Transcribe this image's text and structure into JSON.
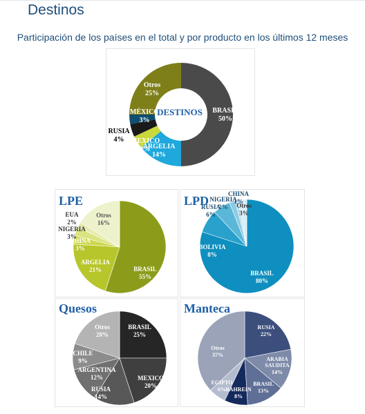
{
  "page": {
    "title": "Destinos",
    "subtitle": "Participación de los países en el total y por producto en los últimos 12 meses"
  },
  "chart_data": [
    {
      "type": "pie",
      "variant": "donut",
      "title": "DESTINOS",
      "slices": [
        {
          "label": "BRASIL",
          "value": 50,
          "display": "50%",
          "color": "#4a4a4a",
          "text_color": "#ffffff"
        },
        {
          "label": "ARGELIA",
          "value": 14,
          "display": "14%",
          "color": "#1ea8dc",
          "text_color": "#ffffff"
        },
        {
          "label": "MEXICO",
          "value": 4,
          "display": "4%",
          "color": "#c9d83b",
          "text_color": "#ffffff"
        },
        {
          "label": "RUSIA",
          "value": 4,
          "display": "4%",
          "color": "#1a1a1a",
          "text_color": "#000000"
        },
        {
          "label": "MÉXICO",
          "value": 3,
          "display": "3%",
          "color": "#0f4e6e",
          "text_color": "#ffffff"
        },
        {
          "label": "Otros",
          "value": 25,
          "display": "25%",
          "color": "#7f7f1a",
          "text_color": "#ffffff"
        }
      ]
    },
    {
      "type": "pie",
      "title": "LPE",
      "slices": [
        {
          "label": "BRASIL",
          "value": 55,
          "display": "55%",
          "color": "#8c9c1a",
          "text_color": "#ffffff"
        },
        {
          "label": "ARGELIA",
          "value": 21,
          "display": "21%",
          "color": "#b7c62a",
          "text_color": "#ffffff"
        },
        {
          "label": "CHINA",
          "value": 3,
          "display": "3%",
          "color": "#cdd84f",
          "text_color": "#ffffff"
        },
        {
          "label": "NIGERIA",
          "value": 3,
          "display": "3%",
          "color": "#dbe380",
          "text_color": "#333333"
        },
        {
          "label": "EUA",
          "value": 2,
          "display": "2%",
          "color": "#e6ebad",
          "text_color": "#333333"
        },
        {
          "label": "Otros",
          "value": 16,
          "display": "16%",
          "color": "#eef2cc",
          "text_color": "#555555"
        }
      ]
    },
    {
      "type": "pie",
      "title": "LPD",
      "slices": [
        {
          "label": "BRASIL",
          "value": 80,
          "display": "80%",
          "color": "#0e8fbf",
          "text_color": "#ffffff"
        },
        {
          "label": "BOLIVIA",
          "value": 8,
          "display": "8%",
          "color": "#2aa1cc",
          "text_color": "#ffffff"
        },
        {
          "label": "RUSIA",
          "value": 6,
          "display": "6%",
          "color": "#5ab7d8",
          "text_color": "#1a4a70"
        },
        {
          "label": "NIGERIA",
          "value": 2,
          "display": "2%",
          "color": "#8ccbe3",
          "text_color": "#1a4a70"
        },
        {
          "label": "CHINA",
          "value": 1,
          "display": "1%",
          "color": "#b5dcec",
          "text_color": "#1a4a70"
        },
        {
          "label": "Otros",
          "value": 3,
          "display": "3%",
          "color": "#dbeef6",
          "text_color": "#333333"
        }
      ]
    },
    {
      "type": "pie",
      "title": "Quesos",
      "slices": [
        {
          "label": "BRASIL",
          "value": 25,
          "display": "25%",
          "color": "#262626",
          "text_color": "#ffffff"
        },
        {
          "label": "MEXICO",
          "value": 20,
          "display": "20%",
          "color": "#3f3f3f",
          "text_color": "#ffffff"
        },
        {
          "label": "RUSIA",
          "value": 14,
          "display": "14%",
          "color": "#585858",
          "text_color": "#ffffff"
        },
        {
          "label": "ARGENTINA",
          "value": 12,
          "display": "12%",
          "color": "#707070",
          "text_color": "#ffffff"
        },
        {
          "label": "CHILE",
          "value": 9,
          "display": "9%",
          "color": "#8c8c8c",
          "text_color": "#ffffff"
        },
        {
          "label": "Otros",
          "value": 20,
          "display": "20%",
          "color": "#b4b4b4",
          "text_color": "#ffffff"
        }
      ]
    },
    {
      "type": "pie",
      "title": "Manteca",
      "slices": [
        {
          "label": "RUSIA",
          "value": 22,
          "display": "22%",
          "color": "#3c4e7c",
          "text_color": "#ffffff"
        },
        {
          "label": "ARABIA SAUDITA",
          "value": 14,
          "display": "14%",
          "color": "#7d8aa8",
          "text_color": "#ffffff"
        },
        {
          "label": "BRASIL",
          "value": 13,
          "display": "13%",
          "color": "#5f6f96",
          "text_color": "#ffffff"
        },
        {
          "label": "BAHREIN",
          "value": 8,
          "display": "8%",
          "color": "#14295c",
          "text_color": "#ffffff"
        },
        {
          "label": "EGIPTO",
          "value": 6,
          "display": "6%",
          "color": "#b4bccf",
          "text_color": "#ffffff"
        },
        {
          "label": "Otros",
          "value": 37,
          "display": "37%",
          "color": "#9aa3b8",
          "text_color": "#ffffff"
        }
      ]
    }
  ]
}
